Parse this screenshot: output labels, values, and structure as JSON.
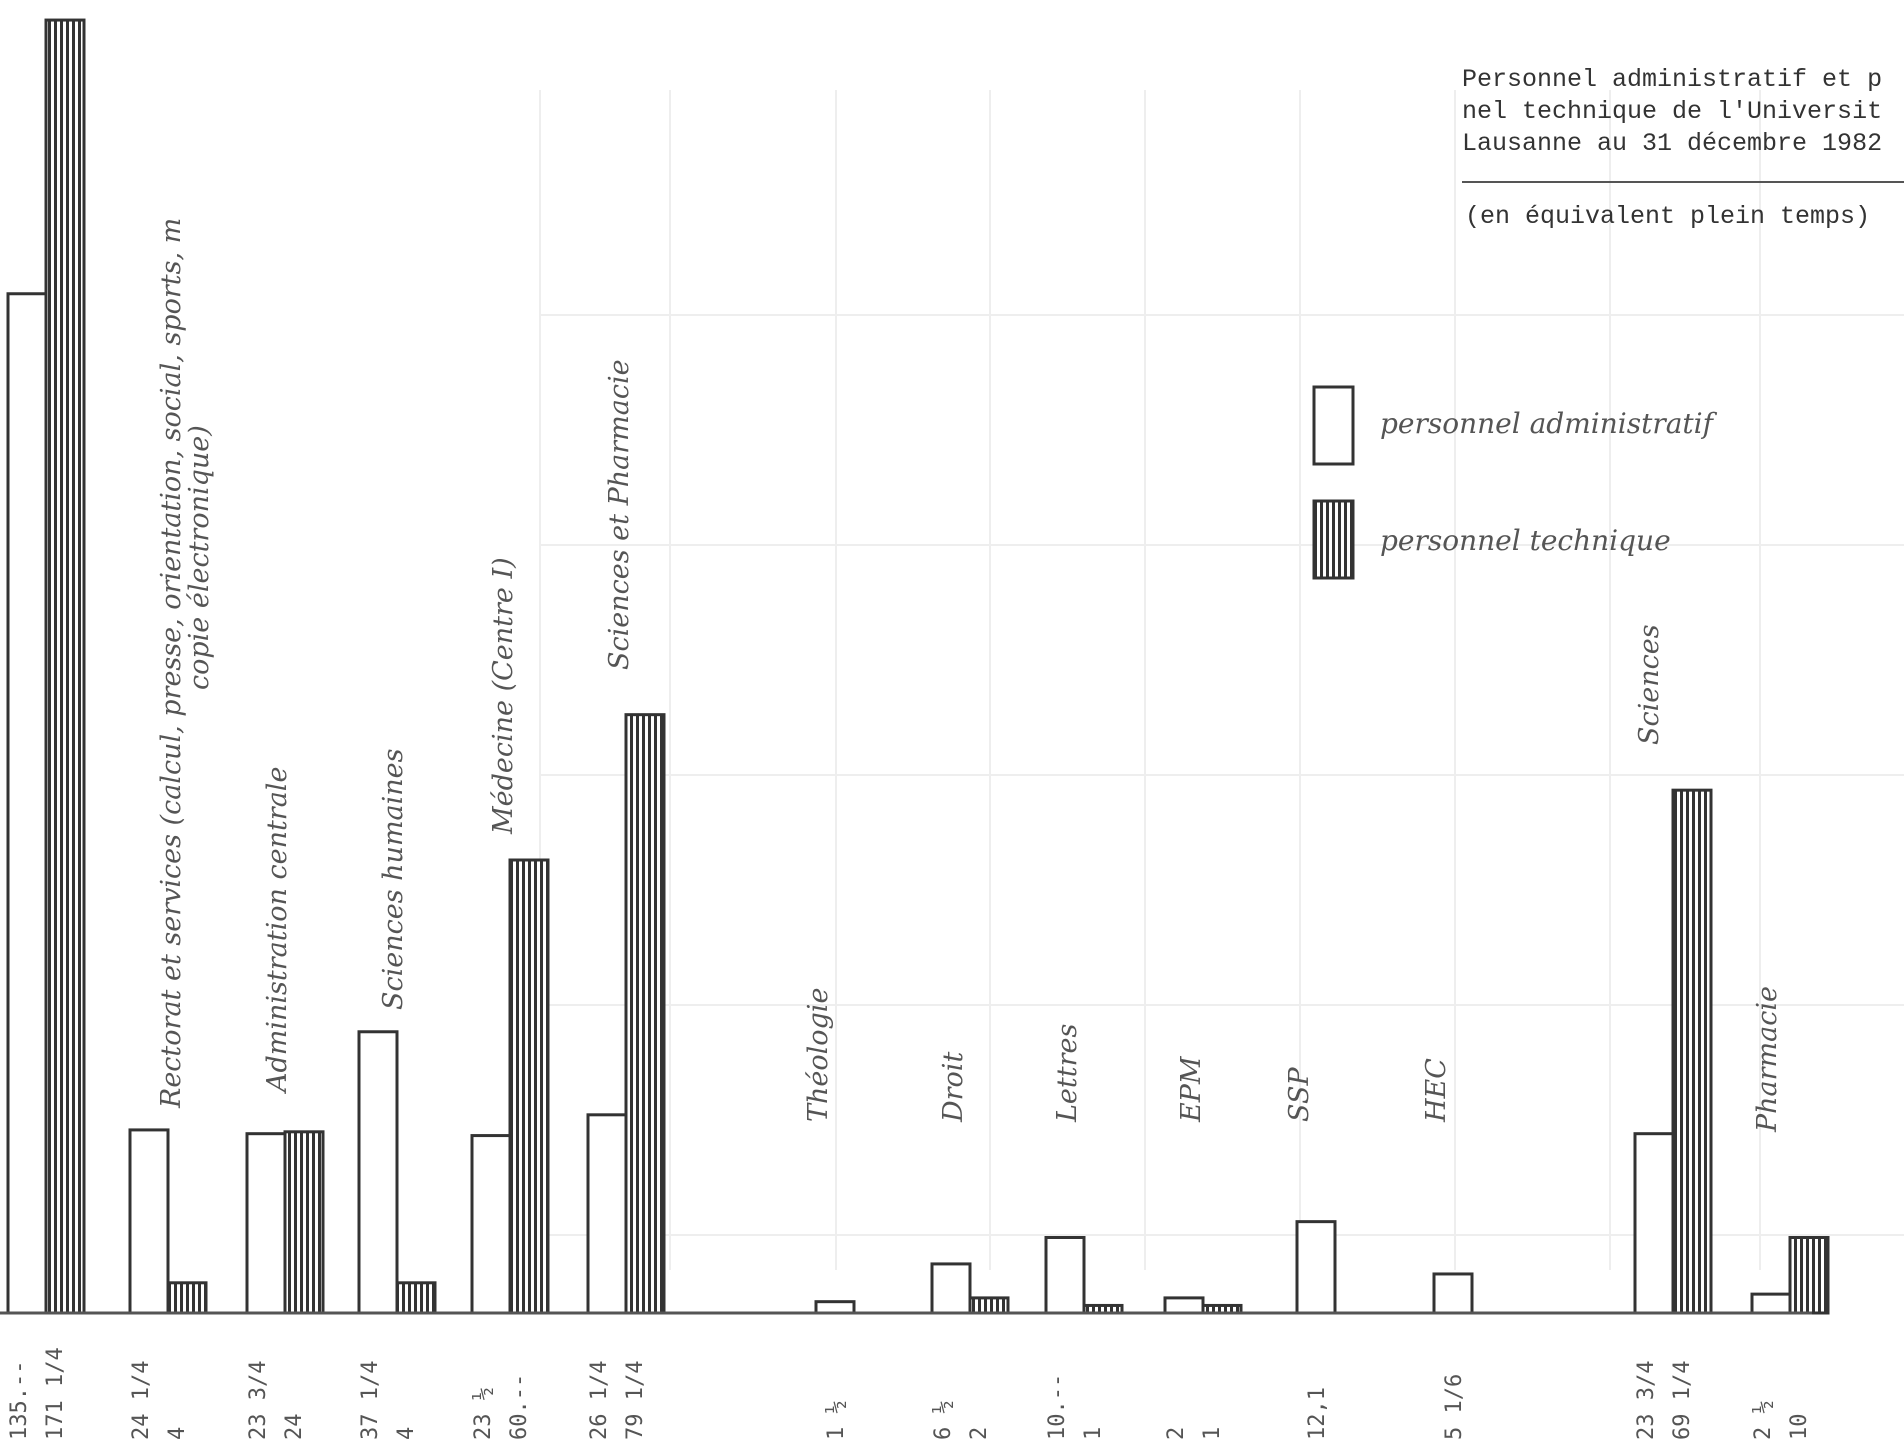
{
  "chart_data": {
    "type": "bar",
    "title": "Personnel administratif et p\nnel technique de l'Universit\nLausanne au 31 décembre 1982",
    "subtitle": "(en équivalent plein temps)",
    "xlabel": "",
    "ylabel": "",
    "ylim": [
      0,
      180
    ],
    "grid": false,
    "legend_position": "top-right",
    "series": [
      {
        "name": "personnel administratif",
        "fill": "#ffffff"
      },
      {
        "name": "personnel technique",
        "fill": "vertical-hatch"
      }
    ],
    "categories": [
      {
        "label": "",
        "admin": 135,
        "tech": 171.25,
        "admin_text": "135.--",
        "tech_text": "171 1/4"
      },
      {
        "label": "Rectorat et services (calcul, presse, orientation, social, sports, m",
        "label2": "copie électronique)",
        "admin": 24.25,
        "tech": 4,
        "admin_text": "24 1/4",
        "tech_text": "4"
      },
      {
        "label": "Administration centrale",
        "admin": 23.75,
        "tech": 24,
        "admin_text": "23 3/4",
        "tech_text": "24"
      },
      {
        "label": "Sciences humaines",
        "admin": 37.25,
        "tech": 4,
        "admin_text": "37 1/4",
        "tech_text": "4"
      },
      {
        "label": "Médecine (Centre I)",
        "admin": 23.5,
        "tech": 60,
        "admin_text": "23 ½",
        "tech_text": "60.--"
      },
      {
        "label": "Sciences et Pharmacie",
        "admin": 26.25,
        "tech": 79.25,
        "admin_text": "26 1/4",
        "tech_text": "79 1/4"
      },
      {
        "label": "Théologie",
        "admin": 1.5,
        "tech": null,
        "admin_text": "1 ½",
        "tech_text": ""
      },
      {
        "label": "Droit",
        "admin": 6.5,
        "tech": 2,
        "admin_text": "6 ½",
        "tech_text": "2"
      },
      {
        "label": "Lettres",
        "admin": 10,
        "tech": 1,
        "admin_text": "10.--",
        "tech_text": "1"
      },
      {
        "label": "EPM",
        "admin": 2,
        "tech": 1,
        "admin_text": "2",
        "tech_text": "1"
      },
      {
        "label": "SSP",
        "admin": 12.1,
        "tech": null,
        "admin_text": "12,1",
        "tech_text": ""
      },
      {
        "label": "HEC",
        "admin": 5.17,
        "tech": null,
        "admin_text": "5 1/6",
        "tech_text": ""
      },
      {
        "label": "Sciences",
        "admin": 23.75,
        "tech": 69.25,
        "admin_text": "23 3/4",
        "tech_text": "69 1/4"
      },
      {
        "label": "Pharmacie",
        "admin": 2.5,
        "tech": 10,
        "admin_text": "2 ½",
        "tech_text": "10"
      }
    ]
  }
}
